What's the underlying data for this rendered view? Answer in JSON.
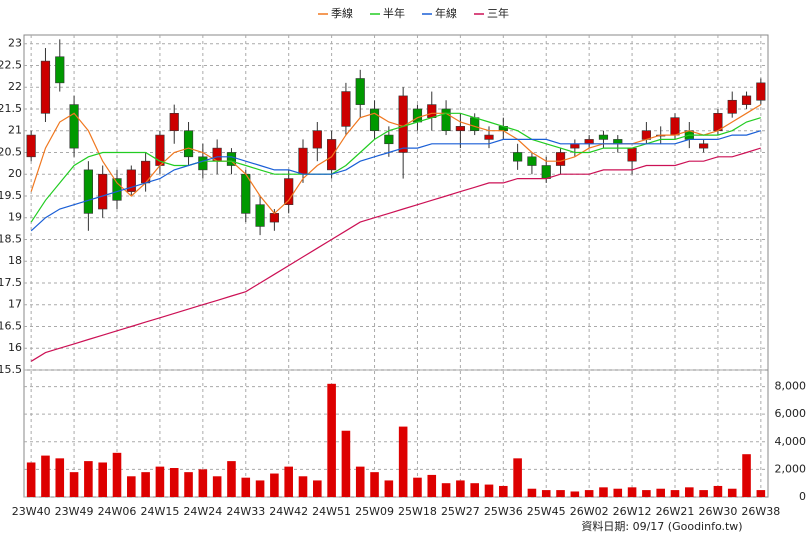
{
  "chart_data": {
    "type": "candlestick",
    "legend": [
      "季線",
      "半年",
      "年線",
      "三年"
    ],
    "footer": "資料日期: 09/17  (Goodinfo.tw)",
    "up_color": "#cc0000",
    "down_color": "#009900",
    "volume_color": "#dd0000",
    "grid": true,
    "categories": [
      "23W40",
      null,
      null,
      "23W49",
      null,
      null,
      "24W06",
      null,
      null,
      "24W15",
      null,
      null,
      "24W24",
      null,
      null,
      "24W33",
      null,
      null,
      "24W42",
      null,
      null,
      "24W51",
      null,
      null,
      "25W09",
      null,
      null,
      "25W18",
      null,
      null,
      "25W27",
      null,
      null,
      "25W36",
      null,
      null,
      "25W45",
      null,
      null,
      "26W02",
      null,
      null,
      "26W12",
      null,
      null,
      "26W21",
      null,
      null,
      "26W30",
      null,
      null,
      "26W38"
    ],
    "open": [
      20.4,
      21.4,
      22.7,
      21.6,
      20.1,
      19.2,
      19.9,
      19.6,
      19.8,
      20.2,
      21.0,
      21.0,
      20.4,
      20.3,
      20.5,
      20.0,
      19.3,
      18.9,
      19.3,
      20.0,
      20.6,
      20.1,
      21.1,
      22.2,
      21.5,
      20.9,
      20.5,
      21.5,
      21.3,
      21.5,
      21.0,
      21.3,
      20.8,
      21.1,
      20.5,
      20.4,
      20.2,
      20.2,
      20.6,
      20.7,
      20.9,
      20.8,
      20.3,
      20.8,
      20.9,
      20.9,
      21.0,
      20.6,
      21.0,
      21.4,
      21.6,
      21.7
    ],
    "high": [
      21.0,
      22.9,
      23.1,
      21.8,
      20.3,
      20.2,
      20.1,
      20.2,
      20.5,
      21.0,
      21.6,
      21.2,
      20.7,
      20.8,
      20.6,
      20.1,
      19.5,
      19.2,
      20.1,
      20.8,
      21.2,
      21.0,
      22.1,
      22.4,
      21.7,
      21.1,
      22.0,
      21.6,
      21.9,
      21.7,
      21.4,
      21.4,
      21.1,
      21.3,
      20.7,
      20.5,
      20.4,
      20.6,
      20.8,
      20.9,
      21.0,
      20.9,
      20.6,
      21.2,
      21.1,
      21.4,
      21.2,
      20.8,
      21.5,
      21.9,
      21.9,
      22.2
    ],
    "low": [
      20.3,
      21.2,
      21.9,
      20.4,
      18.7,
      19.0,
      19.2,
      19.5,
      19.6,
      20.0,
      20.7,
      20.2,
      19.9,
      20.0,
      20.0,
      18.9,
      18.6,
      18.7,
      19.1,
      19.8,
      20.3,
      19.9,
      20.9,
      21.3,
      20.8,
      20.4,
      19.9,
      21.0,
      21.0,
      20.9,
      20.6,
      20.9,
      20.6,
      20.8,
      20.1,
      20.0,
      19.8,
      20.0,
      20.4,
      20.6,
      20.6,
      20.5,
      20.0,
      20.7,
      20.7,
      20.8,
      20.6,
      20.5,
      20.9,
      21.3,
      21.5,
      21.6
    ],
    "close": [
      20.9,
      22.6,
      22.1,
      20.6,
      19.1,
      20.0,
      19.4,
      20.1,
      20.3,
      20.9,
      21.4,
      20.4,
      20.1,
      20.6,
      20.2,
      19.1,
      18.8,
      19.1,
      19.9,
      20.6,
      21.0,
      20.8,
      21.9,
      21.6,
      21.0,
      20.7,
      21.8,
      21.2,
      21.6,
      21.0,
      21.1,
      21.0,
      20.9,
      21.0,
      20.3,
      20.2,
      19.9,
      20.5,
      20.7,
      20.8,
      20.8,
      20.7,
      20.6,
      21.0,
      20.9,
      21.3,
      20.8,
      20.7,
      21.4,
      21.7,
      21.8,
      22.1
    ],
    "volume": [
      2500,
      3000,
      2800,
      1800,
      2600,
      2500,
      3200,
      1500,
      1800,
      2200,
      2100,
      1800,
      2000,
      1500,
      2600,
      1400,
      1200,
      1700,
      2200,
      1500,
      1200,
      8200,
      4800,
      2200,
      1800,
      1200,
      5100,
      1400,
      1600,
      1000,
      1200,
      1000,
      900,
      800,
      2800,
      600,
      500,
      500,
      400,
      500,
      700,
      600,
      700,
      500,
      600,
      500,
      700,
      500,
      800,
      600,
      3100,
      500
    ],
    "lines": [
      {
        "name": "季線",
        "color": "#f07820",
        "values": [
          19.6,
          20.6,
          21.2,
          21.4,
          21.0,
          20.3,
          19.8,
          19.5,
          19.8,
          20.2,
          20.5,
          20.6,
          20.5,
          20.3,
          20.3,
          20.0,
          19.5,
          19.1,
          19.4,
          19.9,
          20.2,
          20.4,
          20.9,
          21.3,
          21.4,
          21.2,
          21.1,
          21.3,
          21.4,
          21.4,
          21.2,
          21.1,
          21.0,
          21.0,
          20.8,
          20.5,
          20.3,
          20.3,
          20.4,
          20.6,
          20.7,
          20.7,
          20.7,
          20.8,
          20.9,
          20.9,
          21.0,
          20.9,
          21.0,
          21.2,
          21.4,
          21.6
        ]
      },
      {
        "name": "半年",
        "color": "#22cc22",
        "values": [
          18.9,
          19.4,
          19.8,
          20.2,
          20.4,
          20.5,
          20.5,
          20.5,
          20.5,
          20.3,
          20.2,
          20.2,
          20.3,
          20.3,
          20.3,
          20.2,
          20.1,
          20.0,
          20.0,
          20.0,
          20.0,
          20.0,
          20.2,
          20.5,
          20.8,
          21.0,
          21.1,
          21.2,
          21.3,
          21.4,
          21.4,
          21.3,
          21.2,
          21.1,
          21.0,
          20.8,
          20.7,
          20.6,
          20.5,
          20.5,
          20.6,
          20.6,
          20.6,
          20.7,
          20.8,
          20.8,
          20.9,
          20.9,
          20.9,
          21.0,
          21.2,
          21.3
        ]
      },
      {
        "name": "年線",
        "color": "#1a5fd6",
        "values": [
          18.7,
          19.0,
          19.2,
          19.3,
          19.4,
          19.5,
          19.6,
          19.7,
          19.8,
          19.9,
          20.1,
          20.2,
          20.3,
          20.4,
          20.4,
          20.3,
          20.2,
          20.1,
          20.1,
          20.0,
          20.0,
          20.0,
          20.1,
          20.3,
          20.4,
          20.5,
          20.6,
          20.6,
          20.7,
          20.7,
          20.7,
          20.7,
          20.7,
          20.8,
          20.8,
          20.8,
          20.8,
          20.7,
          20.7,
          20.7,
          20.7,
          20.7,
          20.7,
          20.7,
          20.7,
          20.7,
          20.8,
          20.8,
          20.8,
          20.9,
          20.9,
          21.0
        ]
      },
      {
        "name": "三年",
        "color": "#cc1155",
        "values": [
          15.7,
          15.9,
          16.0,
          16.1,
          16.2,
          16.3,
          16.4,
          16.5,
          16.6,
          16.7,
          16.8,
          16.9,
          17.0,
          17.1,
          17.2,
          17.3,
          17.5,
          17.7,
          17.9,
          18.1,
          18.3,
          18.5,
          18.7,
          18.9,
          19.0,
          19.1,
          19.2,
          19.3,
          19.4,
          19.5,
          19.6,
          19.7,
          19.8,
          19.8,
          19.9,
          19.9,
          19.9,
          20.0,
          20.0,
          20.0,
          20.1,
          20.1,
          20.1,
          20.2,
          20.2,
          20.2,
          20.3,
          20.3,
          20.4,
          20.4,
          20.5,
          20.6
        ]
      }
    ],
    "ylim": [
      15.5,
      23.2
    ],
    "yticks": [
      15.5,
      16,
      16.5,
      17,
      17.5,
      18,
      18.5,
      19,
      19.5,
      20,
      20.5,
      21,
      21.5,
      22,
      22.5,
      23
    ],
    "y2lim": [
      0,
      9200
    ],
    "y2ticks": [
      0,
      {
        "value": 2000,
        "label": "2,000"
      },
      {
        "value": 4000,
        "label": "4,000"
      },
      {
        "value": 6000,
        "label": "6,000"
      },
      {
        "value": 8000,
        "label": "8,000"
      }
    ]
  }
}
